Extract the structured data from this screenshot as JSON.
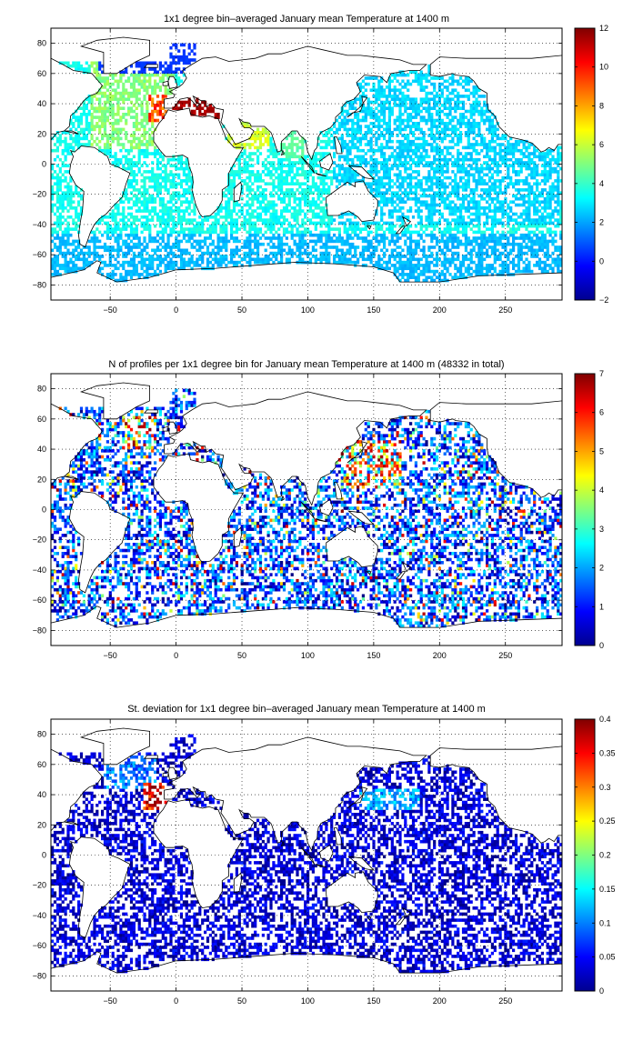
{
  "panels": [
    {
      "title": "1x1 degree bin–averaged January mean Temperature at 1400 m",
      "colorbar_ticks": [
        "12",
        "10",
        "8",
        "6",
        "4",
        "2",
        "0",
        "−2"
      ],
      "colorbar_range": [
        -2,
        12
      ]
    },
    {
      "title": "N of profiles per 1x1 degree bin for January mean Temperature at 1400 m (48332 in total)",
      "colorbar_ticks": [
        "7",
        "6",
        "5",
        "4",
        "3",
        "2",
        "1",
        "0"
      ],
      "colorbar_range": [
        0,
        7
      ]
    },
    {
      "title": "St. deviation for 1x1 degree bin–averaged January mean Temperature at 1400 m",
      "colorbar_ticks": [
        "0.4",
        "0.35",
        "0.3",
        "0.25",
        "0.2",
        "0.15",
        "0.1",
        "0.05",
        "0"
      ],
      "colorbar_range": [
        0,
        0.4
      ]
    }
  ],
  "axes": {
    "x_ticks": [
      "−50",
      "0",
      "50",
      "100",
      "150",
      "200",
      "250"
    ],
    "y_ticks": [
      "80",
      "60",
      "40",
      "20",
      "0",
      "−20",
      "−40",
      "−60",
      "−80"
    ],
    "xlim": [
      -95,
      293
    ],
    "ylim": [
      -90,
      90
    ]
  },
  "colormap": "jet"
}
